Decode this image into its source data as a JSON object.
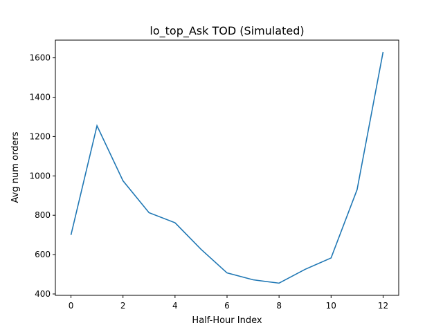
{
  "chart_data": {
    "type": "line",
    "title": "lo_top_Ask TOD (Simulated)",
    "xlabel": "Half-Hour Index",
    "ylabel": "Avg num orders",
    "xlim": [
      -0.6,
      12.6
    ],
    "ylim": [
      393,
      1690
    ],
    "xticks": [
      0,
      2,
      4,
      6,
      8,
      10,
      12
    ],
    "yticks": [
      400,
      600,
      800,
      1000,
      1200,
      1400,
      1600
    ],
    "grid": false,
    "series": [
      {
        "color": "#1f77b4",
        "x": [
          0,
          1,
          2,
          3,
          4,
          5,
          6,
          7,
          8,
          9,
          10,
          11,
          12
        ],
        "y": [
          700,
          1255,
          975,
          813,
          762,
          627,
          507,
          472,
          455,
          525,
          583,
          930,
          1630
        ]
      }
    ]
  }
}
